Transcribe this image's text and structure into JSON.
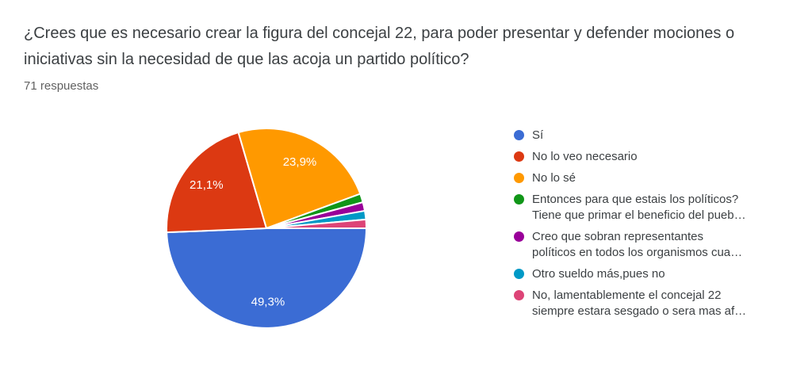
{
  "header": {
    "title_lines": [
      "¿Crees que es necesario crear la figura del concejal 22, para poder presentar y defender mociones o",
      "iniciativas sin la necesidad de que las acoja un partido político?"
    ],
    "responses_count": "71 respuestas"
  },
  "chart_data": {
    "type": "pie",
    "title": "",
    "total_responses": 71,
    "start_angle_deg": 0,
    "direction": "clockwise",
    "legend_position": "right",
    "slice_separator_color": "#ffffff",
    "slices": [
      {
        "label": "Sí",
        "pct": 49.3,
        "pct_label": "49,3%",
        "color": "#3B6CD4",
        "legend_lines": [
          "Sí"
        ]
      },
      {
        "label": "No lo veo necesario",
        "pct": 21.1,
        "pct_label": "21,1%",
        "color": "#DC3912",
        "legend_lines": [
          "No lo veo necesario"
        ]
      },
      {
        "label": "No lo sé",
        "pct": 23.9,
        "pct_label": "23,9%",
        "color": "#FF9900",
        "legend_lines": [
          "No lo sé"
        ]
      },
      {
        "label": "Entonces para que estais los políticos? Tiene que primar el beneficio del pueb…",
        "pct": 1.4,
        "pct_label": "",
        "color": "#109618",
        "legend_lines": [
          "Entonces para que estais los políticos?",
          "Tiene que primar el beneficio del pueb…"
        ]
      },
      {
        "label": "Creo que sobran representantes políticos en todos los organismos cua…",
        "pct": 1.4,
        "pct_label": "",
        "color": "#990099",
        "legend_lines": [
          "Creo que sobran representantes",
          "políticos en todos los organismos cua…"
        ]
      },
      {
        "label": "Otro sueldo más,pues no",
        "pct": 1.4,
        "pct_label": "",
        "color": "#0099C6",
        "legend_lines": [
          "Otro sueldo más,pues no"
        ]
      },
      {
        "label": "No, lamentablemente el concejal 22 siempre estara sesgado o sera mas af…",
        "pct": 1.4,
        "pct_label": "",
        "color": "#DD4477",
        "legend_lines": [
          "No, lamentablemente el concejal 22",
          "siempre estara sesgado o sera mas af…"
        ]
      }
    ]
  }
}
